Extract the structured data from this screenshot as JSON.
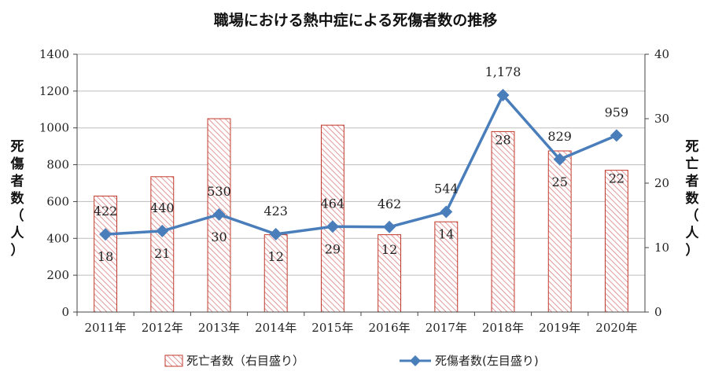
{
  "chart_data": {
    "type": "bar+line",
    "title": "職場における熱中症による死傷者数の推移",
    "categories": [
      "2011年",
      "2012年",
      "2013年",
      "2014年",
      "2015年",
      "2016年",
      "2017年",
      "2018年",
      "2019年",
      "2020年"
    ],
    "series": [
      {
        "name": "死亡者数（右目盛り）",
        "type": "bar",
        "axis": "right",
        "values": [
          18,
          21,
          30,
          12,
          29,
          12,
          14,
          28,
          25,
          22
        ],
        "color": "#c0392b"
      },
      {
        "name": "死傷者数(左目盛り)",
        "type": "line",
        "axis": "left",
        "values": [
          422,
          440,
          530,
          423,
          464,
          462,
          544,
          1178,
          829,
          959
        ],
        "value_labels": [
          "422",
          "440",
          "530",
          "423",
          "464",
          "462",
          "544",
          "1,178",
          "829",
          "959"
        ],
        "color": "#4a7ebb"
      }
    ],
    "y_left": {
      "label": "死傷者数（人）",
      "ylim": [
        0,
        1400
      ],
      "ticks": [
        "0",
        "200",
        "400",
        "600",
        "800",
        "1000",
        "1200",
        "1400"
      ]
    },
    "y_right": {
      "label": "死亡者数（人）",
      "ylim": [
        0,
        40
      ],
      "ticks": [
        "0",
        "10",
        "20",
        "30",
        "40"
      ]
    },
    "grid": "horizontal",
    "legend_position": "bottom"
  }
}
